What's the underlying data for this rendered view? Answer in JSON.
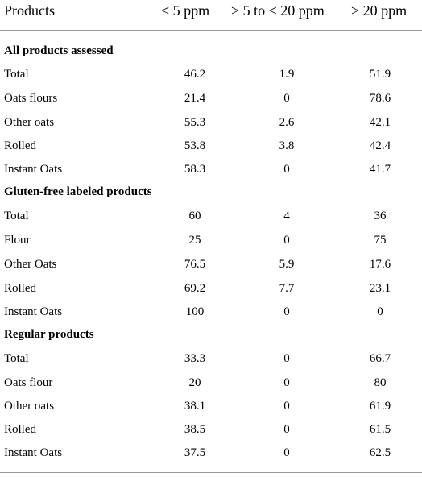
{
  "header": {
    "products": "Products",
    "col1": "< 5 ppm",
    "col2": "> 5 to < 20 ppm",
    "col3": "> 20 ppm"
  },
  "sections": [
    {
      "title": "All products assessed",
      "rows": [
        {
          "product": "Total",
          "c1": "46.2",
          "c2": "1.9",
          "c3": "51.9"
        },
        {
          "product": "Oats flours",
          "c1": "21.4",
          "c2": "0",
          "c3": "78.6"
        },
        {
          "product": "Other oats",
          "c1": "55.3",
          "c2": "2.6",
          "c3": "42.1"
        },
        {
          "product": "Rolled",
          "c1": "53.8",
          "c2": "3.8",
          "c3": "42.4"
        },
        {
          "product": "Instant Oats",
          "c1": "58.3",
          "c2": "0",
          "c3": "41.7"
        }
      ]
    },
    {
      "title": "Gluten-free labeled products",
      "rows": [
        {
          "product": "Total",
          "c1": "60",
          "c2": "4",
          "c3": "36"
        },
        {
          "product": "Flour",
          "c1": "25",
          "c2": "0",
          "c3": "75"
        },
        {
          "product": "Other Oats",
          "c1": "76.5",
          "c2": "5.9",
          "c3": "17.6"
        },
        {
          "product": "Rolled",
          "c1": "69.2",
          "c2": "7.7",
          "c3": "23.1"
        },
        {
          "product": "Instant Oats",
          "c1": "100",
          "c2": "0",
          "c3": "0"
        }
      ]
    },
    {
      "title": "Regular products",
      "rows": [
        {
          "product": "Total",
          "c1": "33.3",
          "c2": "0",
          "c3": "66.7"
        },
        {
          "product": "Oats flour",
          "c1": "20",
          "c2": "0",
          "c3": "80"
        },
        {
          "product": "Other oats",
          "c1": "38.1",
          "c2": "0",
          "c3": "61.9"
        },
        {
          "product": "Rolled",
          "c1": "38.5",
          "c2": "0",
          "c3": "61.5"
        },
        {
          "product": "Instant Oats",
          "c1": "37.5",
          "c2": "0",
          "c3": "62.5"
        }
      ]
    }
  ]
}
